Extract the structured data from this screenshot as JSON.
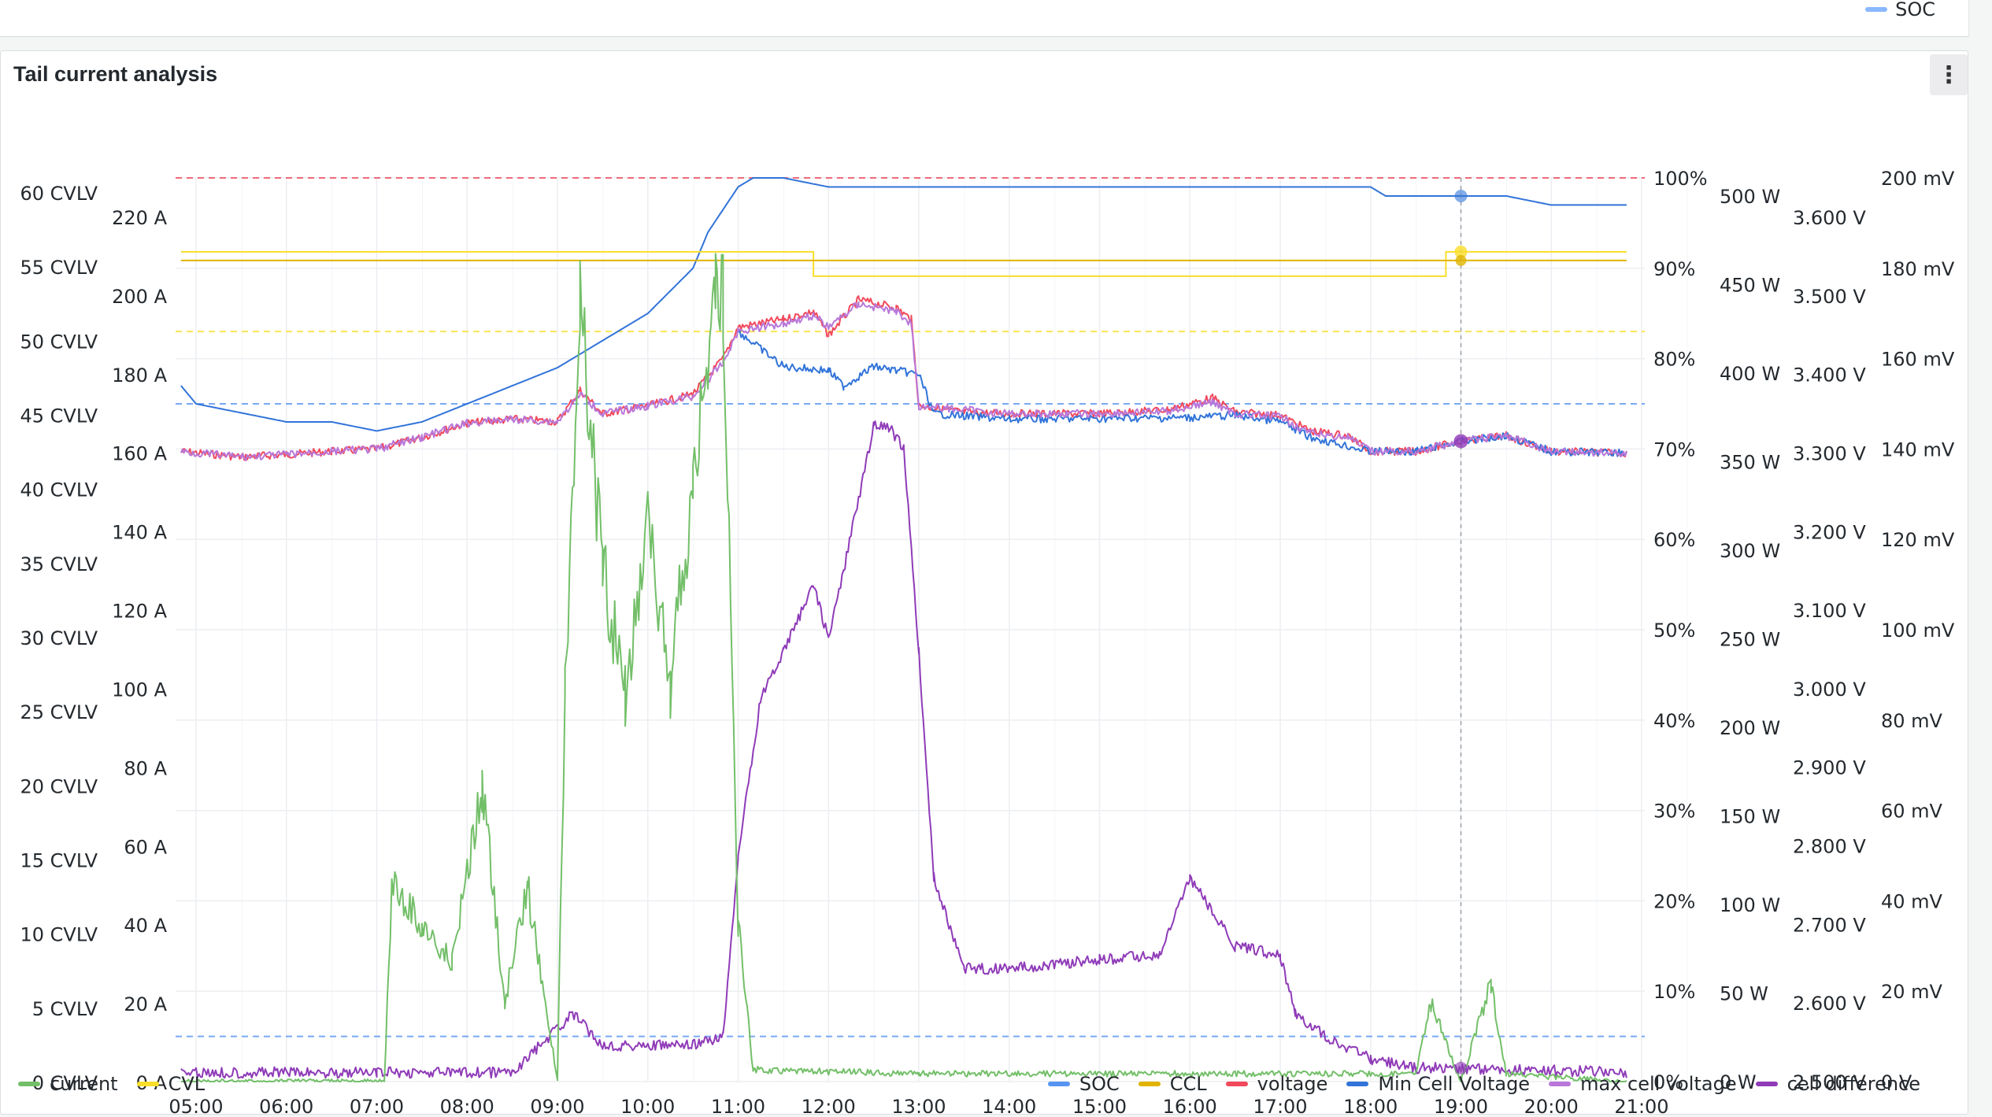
{
  "top_legend": {
    "label": "SOC",
    "color": "#8ab8ff"
  },
  "panel": {
    "title": "Tail current analysis",
    "menu_icon": "kebab-menu-icon"
  },
  "axes": {
    "cvlv": [
      "60 CVLV",
      "55 CVLV",
      "50 CVLV",
      "45 CVLV",
      "40 CVLV",
      "35 CVLV",
      "30 CVLV",
      "25 CVLV",
      "20 CVLV",
      "15 CVLV",
      "10 CVLV",
      "5 CVLV",
      "0 CVLV"
    ],
    "amps": [
      "220 A",
      "200 A",
      "180 A",
      "160 A",
      "140 A",
      "120 A",
      "100 A",
      "80 A",
      "60 A",
      "40 A",
      "20 A",
      "0 A"
    ],
    "percent": [
      "100%",
      "90%",
      "80%",
      "70%",
      "60%",
      "50%",
      "40%",
      "30%",
      "20%",
      "10%",
      "0%"
    ],
    "watts": [
      "500 W",
      "450 W",
      "400 W",
      "350 W",
      "300 W",
      "250 W",
      "200 W",
      "150 W",
      "100 W",
      "50 W",
      "0 W"
    ],
    "volts": [
      "3.600 V",
      "3.500 V",
      "3.400 V",
      "3.300 V",
      "3.200 V",
      "3.100 V",
      "3.000 V",
      "2.900 V",
      "2.800 V",
      "2.700 V",
      "2.600 V",
      "2.500 V"
    ],
    "millivolts": [
      "200 mV",
      "180 mV",
      "160 mV",
      "140 mV",
      "120 mV",
      "100 mV",
      "80 mV",
      "60 mV",
      "40 mV",
      "20 mV",
      "0 V"
    ],
    "time": [
      "05:00",
      "06:00",
      "07:00",
      "08:00",
      "09:00",
      "10:00",
      "11:00",
      "12:00",
      "13:00",
      "14:00",
      "15:00",
      "16:00",
      "17:00",
      "18:00",
      "19:00",
      "20:00",
      "21:00"
    ]
  },
  "legend_left": [
    {
      "label": "current",
      "color": "#73bf69"
    },
    {
      "label": "CVL",
      "color": "#fade2a"
    }
  ],
  "legend_right": [
    {
      "label": "SOC",
      "color": "#5794f2"
    },
    {
      "label": "CCL",
      "color": "#e0b400"
    },
    {
      "label": "voltage",
      "color": "#f2495c"
    },
    {
      "label": "Min Cell Voltage",
      "color": "#3274d9"
    },
    {
      "label": "max cell voltage",
      "color": "#b877d9"
    },
    {
      "label": "cell difference",
      "color": "#8f3bb8"
    }
  ],
  "chart_data": {
    "type": "line",
    "x_range": [
      "05:00",
      "21:00"
    ],
    "series": [
      {
        "name": "SOC",
        "color": "#3274d9",
        "unit": "%",
        "points": [
          [
            "04:50",
            77
          ],
          [
            "05:00",
            75
          ],
          [
            "05:30",
            74
          ],
          [
            "06:00",
            73
          ],
          [
            "06:30",
            73
          ],
          [
            "07:00",
            72
          ],
          [
            "07:30",
            73
          ],
          [
            "08:00",
            75
          ],
          [
            "08:30",
            77
          ],
          [
            "09:00",
            79
          ],
          [
            "09:30",
            82
          ],
          [
            "10:00",
            85
          ],
          [
            "10:30",
            90
          ],
          [
            "10:40",
            94
          ],
          [
            "11:00",
            99
          ],
          [
            "11:10",
            100
          ],
          [
            "11:30",
            100
          ],
          [
            "12:00",
            99
          ],
          [
            "13:00",
            99
          ],
          [
            "16:00",
            99
          ],
          [
            "18:00",
            99
          ],
          [
            "18:10",
            98
          ],
          [
            "19:30",
            98
          ],
          [
            "20:00",
            97
          ],
          [
            "20:50",
            97
          ]
        ]
      },
      {
        "name": "CVL",
        "color": "#fade2a",
        "unit": "V",
        "points": [
          [
            "04:50",
            3.556
          ],
          [
            "11:50",
            3.556
          ],
          [
            "11:50",
            3.525
          ],
          [
            "18:50",
            3.525
          ],
          [
            "18:50",
            3.556
          ],
          [
            "20:50",
            3.556
          ]
        ]
      },
      {
        "name": "CCL",
        "color": "#e0b400",
        "unit": "V",
        "points": [
          [
            "04:50",
            3.545
          ],
          [
            "20:50",
            3.545
          ]
        ]
      },
      {
        "name": "voltage",
        "color": "#f2495c",
        "unit": "V",
        "points": [
          [
            "04:50",
            3.302
          ],
          [
            "05:30",
            3.295
          ],
          [
            "06:00",
            3.298
          ],
          [
            "06:30",
            3.302
          ],
          [
            "07:00",
            3.305
          ],
          [
            "07:30",
            3.32
          ],
          [
            "08:00",
            3.338
          ],
          [
            "08:30",
            3.343
          ],
          [
            "09:00",
            3.34
          ],
          [
            "09:15",
            3.38
          ],
          [
            "09:30",
            3.35
          ],
          [
            "10:00",
            3.36
          ],
          [
            "10:30",
            3.375
          ],
          [
            "10:50",
            3.42
          ],
          [
            "11:00",
            3.46
          ],
          [
            "11:30",
            3.47
          ],
          [
            "11:50",
            3.48
          ],
          [
            "12:00",
            3.45
          ],
          [
            "12:20",
            3.495
          ],
          [
            "12:45",
            3.485
          ],
          [
            "12:55",
            3.47
          ],
          [
            "13:00",
            3.36
          ],
          [
            "13:30",
            3.352
          ],
          [
            "14:00",
            3.35
          ],
          [
            "15:00",
            3.35
          ],
          [
            "15:45",
            3.355
          ],
          [
            "16:15",
            3.37
          ],
          [
            "16:30",
            3.352
          ],
          [
            "17:00",
            3.348
          ],
          [
            "17:20",
            3.328
          ],
          [
            "17:45",
            3.322
          ],
          [
            "18:00",
            3.302
          ],
          [
            "18:30",
            3.302
          ],
          [
            "19:00",
            3.315
          ],
          [
            "19:30",
            3.322
          ],
          [
            "20:00",
            3.302
          ],
          [
            "20:50",
            3.3
          ]
        ]
      },
      {
        "name": "Min Cell Voltage",
        "color": "#3274d9",
        "unit": "V",
        "points": [
          [
            "11:00",
            3.455
          ],
          [
            "11:30",
            3.41
          ],
          [
            "12:00",
            3.405
          ],
          [
            "12:10",
            3.385
          ],
          [
            "12:30",
            3.41
          ],
          [
            "13:00",
            3.4
          ],
          [
            "13:10",
            3.35
          ],
          [
            "14:00",
            3.343
          ],
          [
            "16:00",
            3.345
          ],
          [
            "16:30",
            3.348
          ],
          [
            "17:00",
            3.34
          ],
          [
            "17:20",
            3.32
          ],
          [
            "18:00",
            3.302
          ],
          [
            "18:30",
            3.302
          ],
          [
            "19:00",
            3.315
          ],
          [
            "19:30",
            3.322
          ],
          [
            "20:00",
            3.302
          ],
          [
            "20:50",
            3.3
          ]
        ]
      },
      {
        "name": "max cell voltage",
        "color": "#b877d9",
        "unit": "V",
        "points": [
          [
            "04:50",
            3.302
          ],
          [
            "05:30",
            3.295
          ],
          [
            "06:00",
            3.298
          ],
          [
            "06:30",
            3.302
          ],
          [
            "07:00",
            3.305
          ],
          [
            "07:30",
            3.32
          ],
          [
            "08:00",
            3.338
          ],
          [
            "08:30",
            3.343
          ],
          [
            "09:00",
            3.34
          ],
          [
            "09:15",
            3.375
          ],
          [
            "09:30",
            3.35
          ],
          [
            "10:00",
            3.36
          ],
          [
            "10:30",
            3.372
          ],
          [
            "10:50",
            3.415
          ],
          [
            "11:00",
            3.455
          ],
          [
            "11:30",
            3.465
          ],
          [
            "11:50",
            3.475
          ],
          [
            "12:00",
            3.46
          ],
          [
            "12:20",
            3.49
          ],
          [
            "12:45",
            3.48
          ],
          [
            "12:55",
            3.465
          ],
          [
            "13:00",
            3.36
          ],
          [
            "14:00",
            3.35
          ],
          [
            "15:00",
            3.35
          ],
          [
            "15:45",
            3.353
          ],
          [
            "16:15",
            3.365
          ],
          [
            "16:30",
            3.35
          ],
          [
            "17:00",
            3.346
          ],
          [
            "17:20",
            3.325
          ],
          [
            "17:45",
            3.32
          ],
          [
            "18:00",
            3.302
          ],
          [
            "18:30",
            3.302
          ],
          [
            "19:00",
            3.315
          ],
          [
            "19:30",
            3.322
          ],
          [
            "20:00",
            3.302
          ],
          [
            "20:50",
            3.3
          ]
        ]
      },
      {
        "name": "cell difference",
        "color": "#8f3bb8",
        "unit": "mV",
        "points": [
          [
            "04:50",
            2
          ],
          [
            "07:00",
            2
          ],
          [
            "08:30",
            2
          ],
          [
            "09:10",
            15
          ],
          [
            "09:30",
            8
          ],
          [
            "10:30",
            8
          ],
          [
            "10:50",
            10
          ],
          [
            "11:00",
            50
          ],
          [
            "11:15",
            85
          ],
          [
            "11:30",
            95
          ],
          [
            "11:50",
            110
          ],
          [
            "12:00",
            98
          ],
          [
            "12:10",
            113
          ],
          [
            "12:30",
            145
          ],
          [
            "12:40",
            145
          ],
          [
            "12:50",
            140
          ],
          [
            "13:00",
            95
          ],
          [
            "13:10",
            45
          ],
          [
            "13:30",
            25
          ],
          [
            "14:00",
            25
          ],
          [
            "15:00",
            27
          ],
          [
            "15:40",
            28
          ],
          [
            "16:00",
            45
          ],
          [
            "16:30",
            30
          ],
          [
            "17:00",
            28
          ],
          [
            "17:10",
            15
          ],
          [
            "17:30",
            10
          ],
          [
            "18:00",
            5
          ],
          [
            "18:30",
            3
          ],
          [
            "19:00",
            3
          ],
          [
            "20:50",
            2
          ]
        ]
      },
      {
        "name": "current",
        "color": "#73bf69",
        "unit": "A",
        "points": [
          [
            "04:50",
            0
          ],
          [
            "07:05",
            0
          ],
          [
            "07:10",
            50
          ],
          [
            "07:30",
            40
          ],
          [
            "07:50",
            30
          ],
          [
            "08:10",
            75
          ],
          [
            "08:25",
            20
          ],
          [
            "08:40",
            50
          ],
          [
            "09:00",
            0
          ],
          [
            "09:05",
            100
          ],
          [
            "09:15",
            200
          ],
          [
            "09:30",
            130
          ],
          [
            "09:45",
            100
          ],
          [
            "10:00",
            140
          ],
          [
            "10:15",
            100
          ],
          [
            "10:30",
            150
          ],
          [
            "10:45",
            205
          ],
          [
            "10:50",
            200
          ],
          [
            "11:00",
            40
          ],
          [
            "11:10",
            3
          ],
          [
            "13:00",
            2
          ],
          [
            "18:30",
            2
          ],
          [
            "18:40",
            20
          ],
          [
            "19:00",
            0
          ],
          [
            "19:20",
            25
          ],
          [
            "19:30",
            2
          ],
          [
            "20:50",
            0
          ]
        ]
      }
    ],
    "thresholds_percent": [
      100,
      83,
      75,
      5
    ],
    "cursor_time": "19:00"
  }
}
